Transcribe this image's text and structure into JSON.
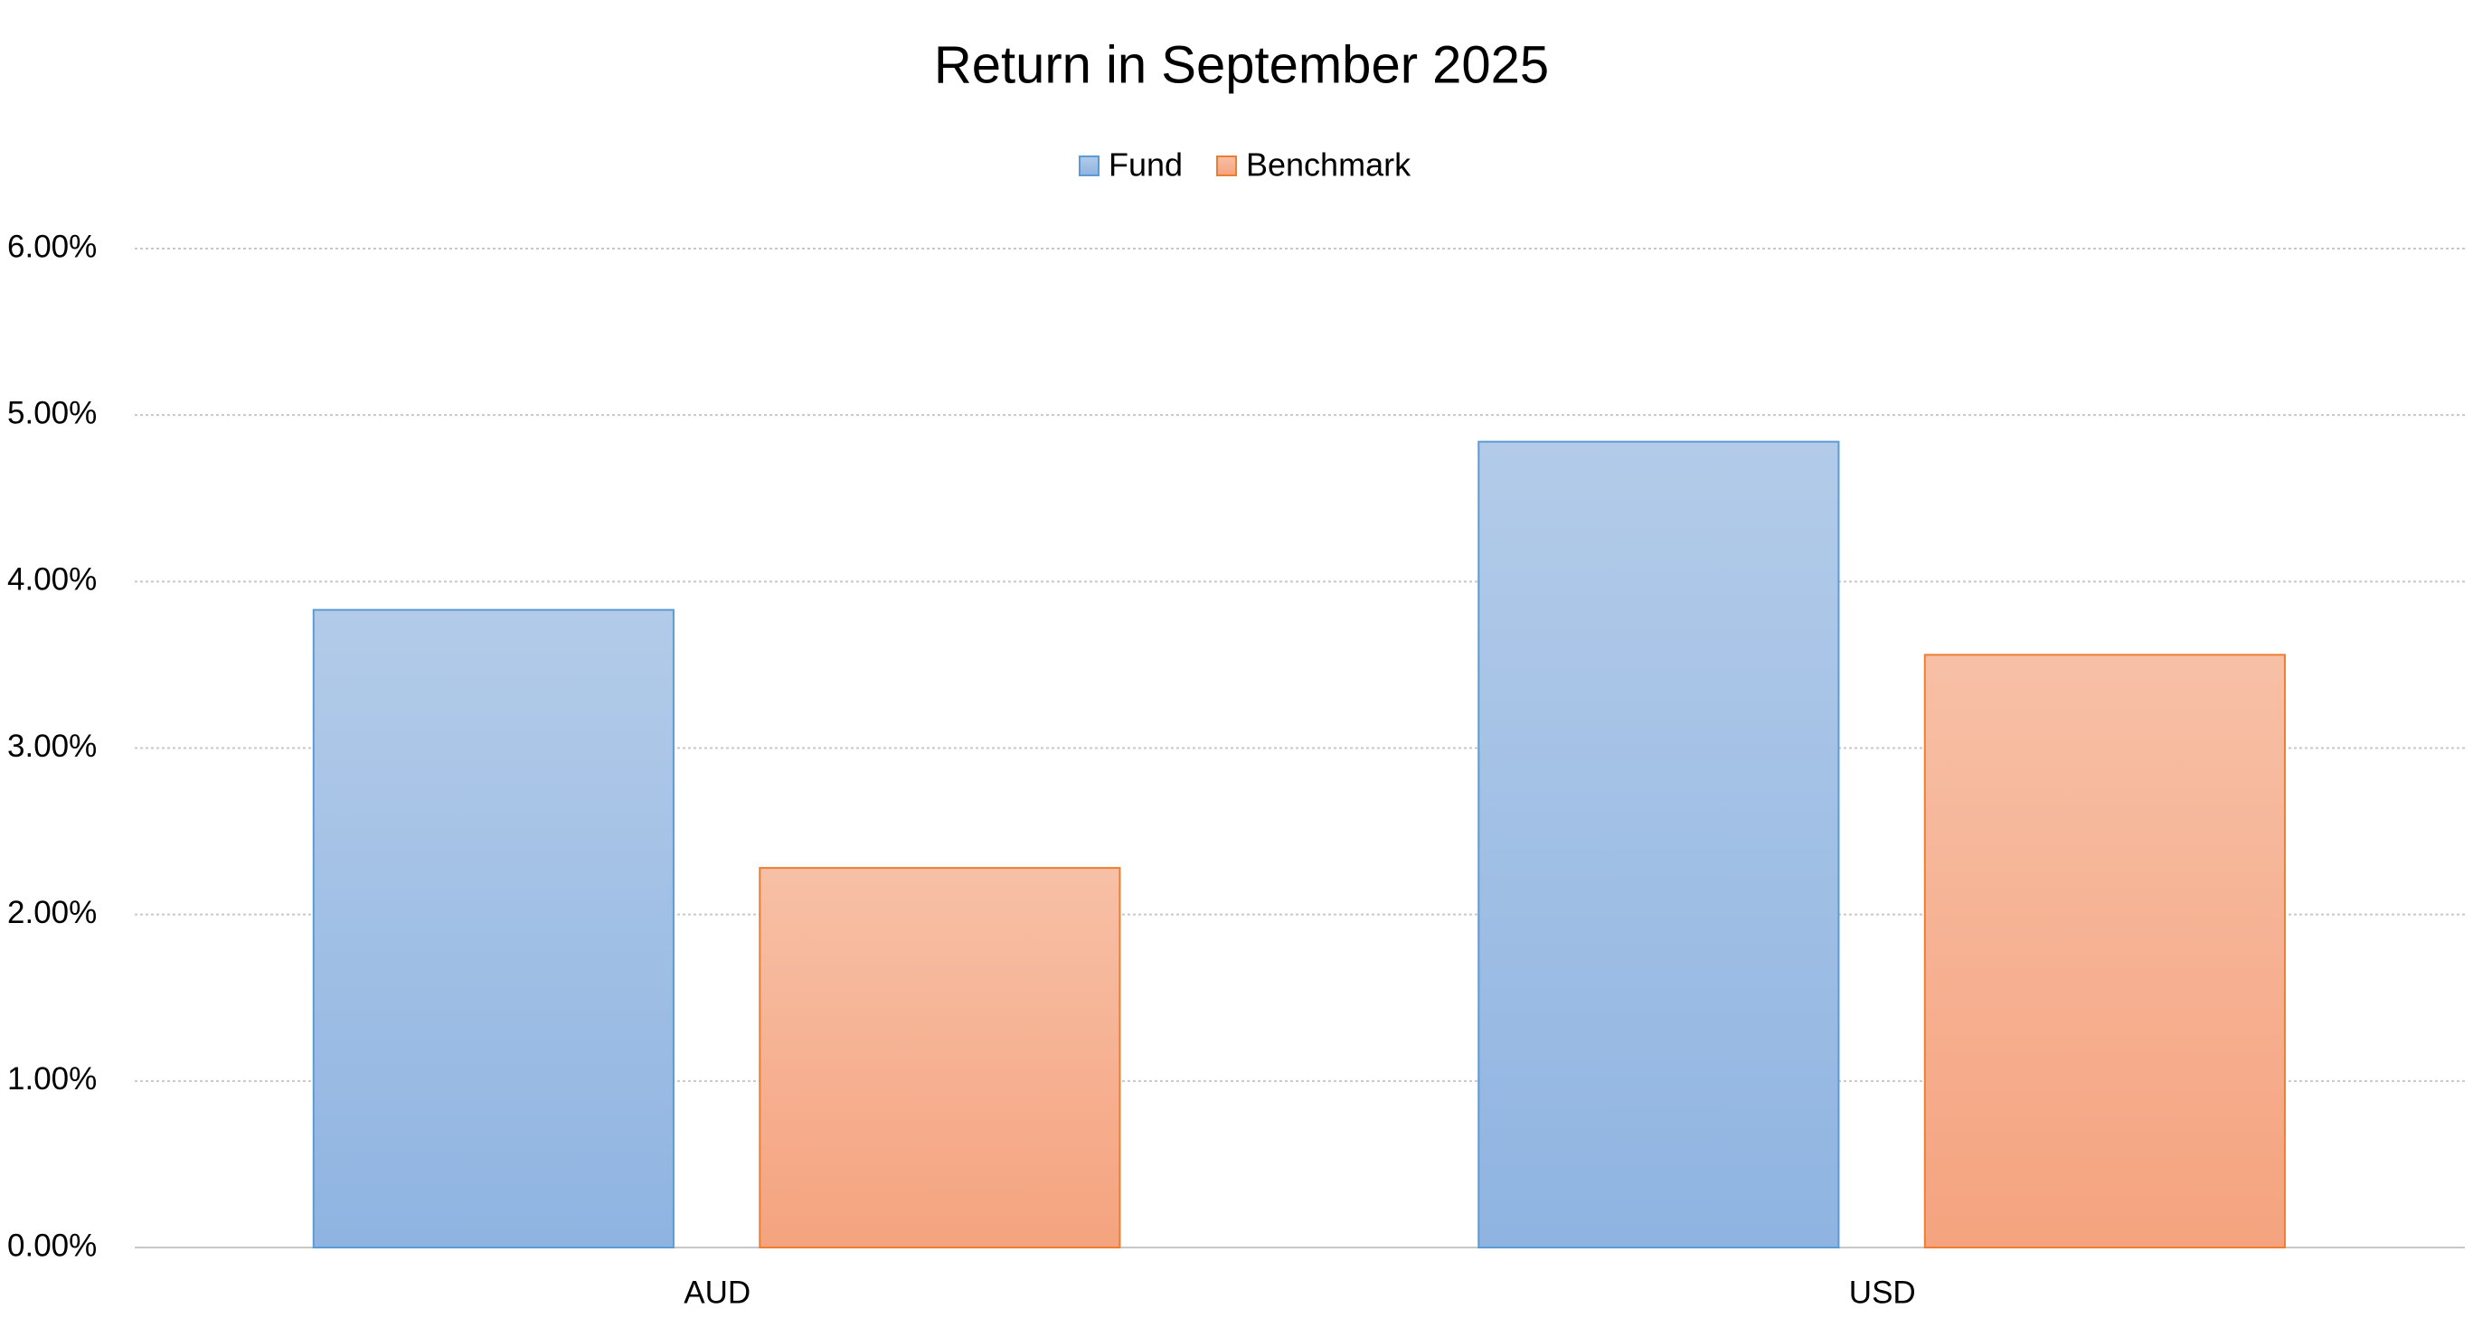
{
  "chart_data": {
    "type": "bar",
    "title": "Return in September 2025",
    "categories": [
      "AUD",
      "USD"
    ],
    "series": [
      {
        "name": "Fund",
        "color": "#5b9bd5",
        "values": [
          3.83,
          4.84
        ]
      },
      {
        "name": "Benchmark",
        "color": "#ed7d31",
        "values": [
          2.28,
          3.56
        ]
      }
    ],
    "ylim": [
      0,
      6
    ],
    "yticks": [
      {
        "value": 0,
        "label": "0.00%"
      },
      {
        "value": 1,
        "label": "1.00%"
      },
      {
        "value": 2,
        "label": "2.00%"
      },
      {
        "value": 3,
        "label": "3.00%"
      },
      {
        "value": 4,
        "label": "4.00%"
      },
      {
        "value": 5,
        "label": "5.00%"
      },
      {
        "value": 6,
        "label": "6.00%"
      }
    ],
    "grid": true,
    "legend": "top"
  }
}
